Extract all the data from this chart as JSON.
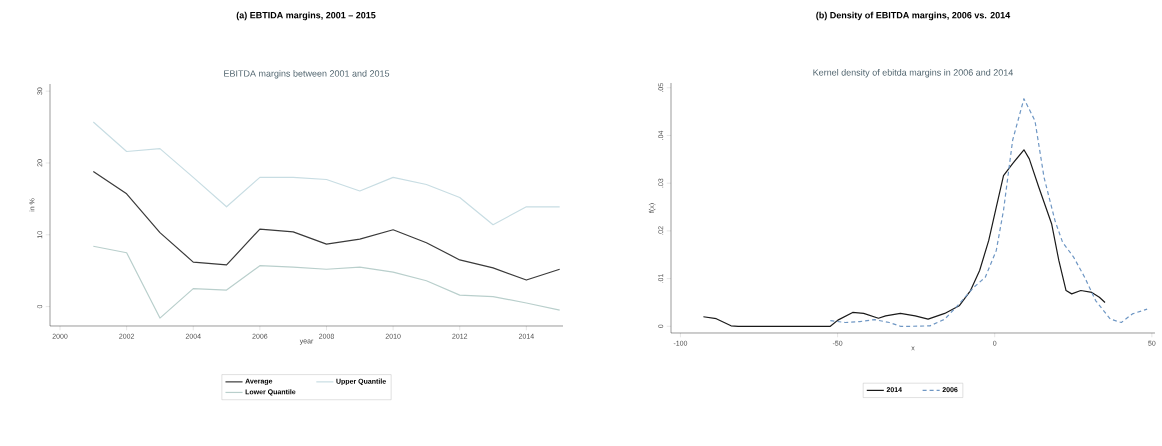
{
  "chart_data": [
    {
      "type": "line",
      "title": "(a) EBTIDA margins, 2001 – 2015",
      "subtitle": "EBITDA margins between 2001 and 2015",
      "xlabel": "year",
      "ylabel": "in %",
      "x": [
        2001,
        2002,
        2003,
        2004,
        2005,
        2006,
        2007,
        2008,
        2009,
        2010,
        2011,
        2012,
        2013,
        2014,
        2015
      ],
      "series": [
        {
          "name": "Average",
          "color": "#3a3a3a",
          "values": [
            18.8,
            15.7,
            10.3,
            6.2,
            5.8,
            10.8,
            10.4,
            8.7,
            9.4,
            10.7,
            8.9,
            6.5,
            5.4,
            3.7,
            5.2
          ]
        },
        {
          "name": "Upper Quantile",
          "color": "#c8dde3",
          "values": [
            25.7,
            21.6,
            22.0,
            18.0,
            13.9,
            18.0,
            18.0,
            17.7,
            16.1,
            18.0,
            17.0,
            15.2,
            11.4,
            13.9,
            13.9
          ]
        },
        {
          "name": "Lower Quantile",
          "color": "#b9cfcc",
          "values": [
            8.4,
            7.5,
            -1.6,
            2.5,
            2.3,
            5.7,
            5.5,
            5.2,
            5.5,
            4.8,
            3.6,
            1.6,
            1.4,
            0.5,
            -0.5
          ]
        }
      ],
      "xlim": [
        1999.7,
        2015.1
      ],
      "ylim": [
        -2.7,
        31
      ],
      "xticks": [
        2000,
        2002,
        2004,
        2006,
        2008,
        2010,
        2012,
        2014
      ],
      "yticks": [
        0,
        10,
        20,
        30
      ],
      "legend": "bottom",
      "line_style": "solid"
    },
    {
      "type": "line",
      "title": "(b) Density of EBITDA margins, 2006 vs. 2014",
      "subtitle": "Kernel density of ebitda margins in 2006 and 2014",
      "xlabel": "x",
      "ylabel": "f(x)",
      "series": [
        {
          "name": "2014",
          "color": "#1a1a1a",
          "line_style": "solid",
          "x": [
            -92.7,
            -88.6,
            -83.9,
            -81.6,
            -52.3,
            -49.9,
            -45.2,
            -41.7,
            -37.0,
            -34.7,
            -30.0,
            -25.3,
            -21.2,
            -15.9,
            -11.3,
            -7.7,
            -4.8,
            -1.9,
            0.5,
            2.8,
            5.7,
            9.3,
            11.0,
            14.0,
            18.1,
            20.4,
            22.7,
            24.5,
            27.4,
            30.9,
            33.3,
            35.1
          ],
          "values": [
            0.002,
            0.0016,
            0.0001,
            0,
            0,
            0.0013,
            0.0029,
            0.0027,
            0.0017,
            0.0022,
            0.0027,
            0.0022,
            0.0015,
            0.0027,
            0.0043,
            0.0075,
            0.0117,
            0.018,
            0.025,
            0.0316,
            0.0341,
            0.037,
            0.0351,
            0.0292,
            0.0215,
            0.0138,
            0.0075,
            0.0068,
            0.0075,
            0.0071,
            0.0061,
            0.005
          ]
        },
        {
          "name": "2006",
          "color": "#6f97c4",
          "line_style": "dashed",
          "x": [
            -52.3,
            -47.6,
            -42.9,
            -38.2,
            -33.5,
            -30.0,
            -26.5,
            -20.6,
            -15.9,
            -11.3,
            -6.6,
            -3.0,
            0.5,
            2.8,
            5.7,
            9.3,
            12.8,
            15.7,
            19.2,
            21.6,
            25.1,
            28.6,
            32.1,
            36.8,
            40.3,
            43.8,
            48.5
          ],
          "values": [
            0.0012,
            0.0008,
            0.001,
            0.0014,
            0.0008,
            0,
            0,
            0.0001,
            0.0015,
            0.0047,
            0.0082,
            0.0103,
            0.0159,
            0.0243,
            0.039,
            0.0477,
            0.0431,
            0.0312,
            0.0221,
            0.0176,
            0.0145,
            0.0103,
            0.0054,
            0.0015,
            0.0008,
            0.0026,
            0.0036
          ]
        }
      ],
      "xlim": [
        -103,
        51
      ],
      "ylim": [
        -0.0014,
        0.051
      ],
      "xticks": [
        -100,
        -50,
        0,
        50
      ],
      "yticks": [
        0,
        {
          "value": 0.01,
          "label": ".01"
        },
        {
          "value": 0.02,
          "label": ".02"
        },
        {
          "value": 0.03,
          "label": ".03"
        },
        {
          "value": 0.04,
          "label": ".04"
        },
        {
          "value": 0.05,
          "label": ".05"
        }
      ],
      "legend": "bottom"
    }
  ]
}
